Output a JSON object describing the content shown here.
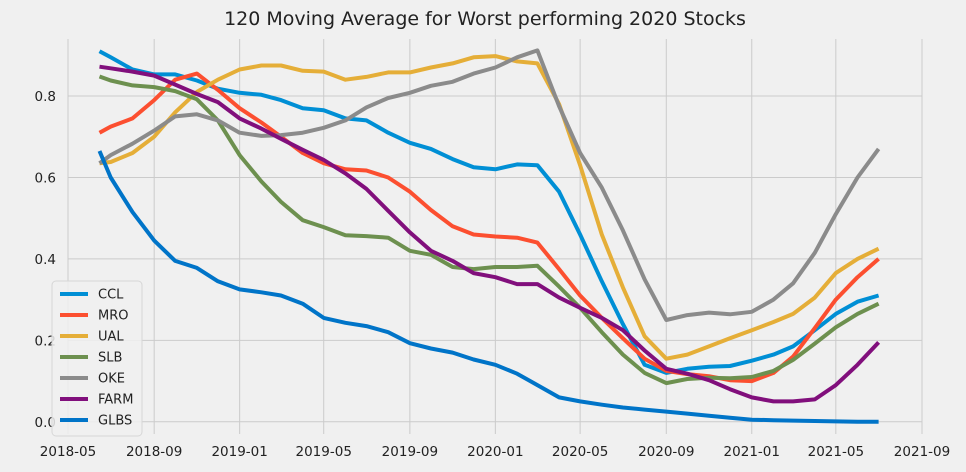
{
  "chart_data": {
    "type": "line",
    "title": "120 Moving Average for Worst performing 2020 Stocks",
    "xlabel": "",
    "ylabel": "",
    "x_ticks": [
      "2018-05",
      "2018-09",
      "2019-01",
      "2019-05",
      "2019-09",
      "2020-01",
      "2020-05",
      "2020-09",
      "2021-01",
      "2021-05",
      "2021-09"
    ],
    "y_ticks": [
      "0.0",
      "0.2",
      "0.4",
      "0.6",
      "0.8"
    ],
    "xlim": [
      "2018-05-01",
      "2021-09-01"
    ],
    "ylim": [
      -0.03,
      0.94
    ],
    "grid": true,
    "legend": "lower-left",
    "x": [
      "2018-06-15",
      "2018-07-01",
      "2018-08-01",
      "2018-09-01",
      "2018-10-01",
      "2018-11-01",
      "2018-12-01",
      "2019-01-01",
      "2019-02-01",
      "2019-03-01",
      "2019-04-01",
      "2019-05-01",
      "2019-06-01",
      "2019-07-01",
      "2019-08-01",
      "2019-09-01",
      "2019-10-01",
      "2019-11-01",
      "2019-12-01",
      "2020-01-01",
      "2020-02-01",
      "2020-03-01",
      "2020-04-01",
      "2020-05-01",
      "2020-06-01",
      "2020-07-01",
      "2020-08-01",
      "2020-09-01",
      "2020-10-01",
      "2020-11-01",
      "2020-12-01",
      "2021-01-01",
      "2021-02-01",
      "2021-03-01",
      "2021-04-01",
      "2021-05-01",
      "2021-06-01",
      "2021-07-01"
    ],
    "series": [
      {
        "name": "CCL",
        "color": "#008fd5",
        "values": [
          0.91,
          0.895,
          0.865,
          0.853,
          0.853,
          0.838,
          0.818,
          0.808,
          0.803,
          0.79,
          0.77,
          0.765,
          0.745,
          0.74,
          0.71,
          0.685,
          0.67,
          0.645,
          0.625,
          0.62,
          0.632,
          0.63,
          0.565,
          0.46,
          0.345,
          0.24,
          0.14,
          0.12,
          0.13,
          0.135,
          0.137,
          0.15,
          0.165,
          0.185,
          0.225,
          0.265,
          0.295,
          0.31
        ]
      },
      {
        "name": "MRO",
        "color": "#fc4f30",
        "values": [
          0.71,
          0.725,
          0.745,
          0.79,
          0.84,
          0.855,
          0.815,
          0.77,
          0.735,
          0.7,
          0.66,
          0.635,
          0.62,
          0.617,
          0.6,
          0.565,
          0.52,
          0.48,
          0.46,
          0.455,
          0.452,
          0.44,
          0.375,
          0.31,
          0.255,
          0.205,
          0.155,
          0.125,
          0.117,
          0.112,
          0.102,
          0.1,
          0.12,
          0.16,
          0.23,
          0.3,
          0.355,
          0.4
        ]
      },
      {
        "name": "UAL",
        "color": "#e5ae38",
        "values": [
          0.635,
          0.638,
          0.66,
          0.7,
          0.76,
          0.81,
          0.84,
          0.865,
          0.875,
          0.875,
          0.862,
          0.86,
          0.84,
          0.847,
          0.858,
          0.858,
          0.87,
          0.88,
          0.895,
          0.898,
          0.885,
          0.88,
          0.78,
          0.63,
          0.46,
          0.33,
          0.21,
          0.155,
          0.165,
          0.185,
          0.205,
          0.225,
          0.245,
          0.265,
          0.305,
          0.365,
          0.4,
          0.425
        ]
      },
      {
        "name": "SLB",
        "color": "#6d904f",
        "values": [
          0.848,
          0.838,
          0.826,
          0.822,
          0.812,
          0.792,
          0.74,
          0.655,
          0.59,
          0.54,
          0.495,
          0.478,
          0.458,
          0.456,
          0.452,
          0.42,
          0.41,
          0.38,
          0.375,
          0.38,
          0.38,
          0.383,
          0.332,
          0.28,
          0.22,
          0.165,
          0.12,
          0.095,
          0.105,
          0.108,
          0.107,
          0.11,
          0.125,
          0.152,
          0.192,
          0.232,
          0.265,
          0.29
        ]
      },
      {
        "name": "OKE",
        "color": "#8b8b8b",
        "values": [
          0.635,
          0.655,
          0.683,
          0.715,
          0.75,
          0.755,
          0.74,
          0.71,
          0.702,
          0.704,
          0.71,
          0.722,
          0.74,
          0.772,
          0.795,
          0.808,
          0.825,
          0.835,
          0.855,
          0.87,
          0.895,
          0.912,
          0.775,
          0.66,
          0.575,
          0.47,
          0.35,
          0.25,
          0.262,
          0.268,
          0.264,
          0.27,
          0.3,
          0.34,
          0.415,
          0.51,
          0.6,
          0.67
        ]
      },
      {
        "name": "FARM",
        "color": "#810f7c",
        "values": [
          0.872,
          0.868,
          0.86,
          0.85,
          0.828,
          0.805,
          0.785,
          0.745,
          0.72,
          0.695,
          0.668,
          0.643,
          0.61,
          0.572,
          0.518,
          0.465,
          0.42,
          0.395,
          0.365,
          0.355,
          0.338,
          0.338,
          0.305,
          0.28,
          0.255,
          0.225,
          0.175,
          0.13,
          0.118,
          0.102,
          0.08,
          0.06,
          0.05,
          0.05,
          0.055,
          0.09,
          0.14,
          0.195
        ]
      },
      {
        "name": "GLBS",
        "color": "#0074c8",
        "values": [
          0.665,
          0.6,
          0.515,
          0.445,
          0.395,
          0.378,
          0.345,
          0.325,
          0.318,
          0.31,
          0.29,
          0.255,
          0.243,
          0.235,
          0.22,
          0.193,
          0.18,
          0.17,
          0.153,
          0.14,
          0.118,
          0.09,
          0.06,
          0.05,
          0.042,
          0.035,
          0.03,
          0.025,
          0.02,
          0.015,
          0.01,
          0.005,
          0.004,
          0.003,
          0.002,
          0.001,
          0.0,
          0.0
        ]
      }
    ]
  }
}
